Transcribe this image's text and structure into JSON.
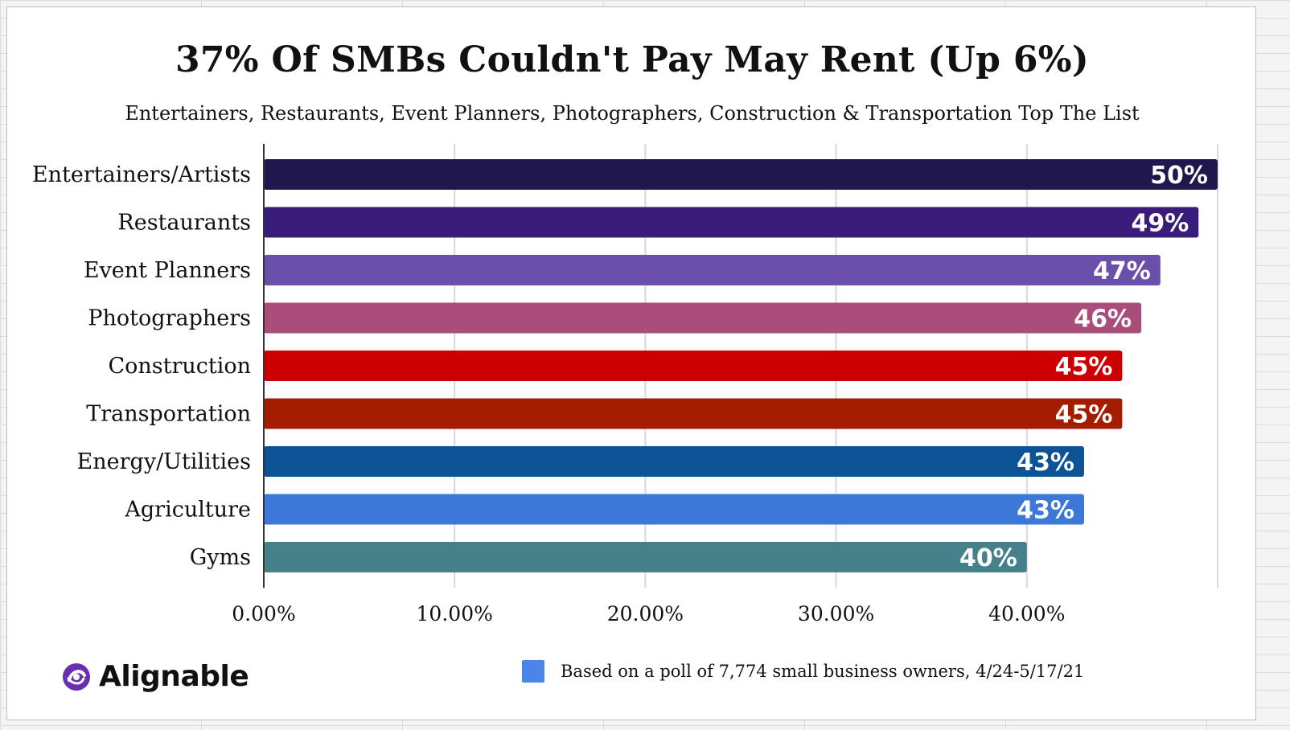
{
  "chart_data": {
    "type": "bar",
    "orientation": "horizontal",
    "title": "37% Of SMBs Couldn't Pay May Rent (Up 6%)",
    "subtitle": "Entertainers, Restaurants, Event Planners, Photographers, Construction & Transportation Top The List",
    "categories": [
      "Entertainers/Artists",
      "Restaurants",
      "Event Planners",
      "Photographers",
      "Construction",
      "Transportation",
      "Energy/Utilities",
      "Agriculture",
      "Gyms"
    ],
    "values": [
      50,
      49,
      47,
      46,
      45,
      45,
      43,
      43,
      40
    ],
    "data_labels": [
      "50%",
      "49%",
      "47%",
      "46%",
      "45%",
      "45%",
      "43%",
      "43%",
      "40%"
    ],
    "colors": [
      "#22174d",
      "#3a1c7a",
      "#6a4fab",
      "#a94e7a",
      "#cc0000",
      "#a51d00",
      "#0b5394",
      "#3c78d8",
      "#46818b"
    ],
    "xlim": [
      0,
      50
    ],
    "xticks": [
      0,
      10,
      20,
      30,
      40
    ],
    "xtick_labels": [
      "0.00%",
      "10.00%",
      "20.00%",
      "30.00%",
      "40.00%"
    ],
    "grid": true,
    "legend": {
      "position": "bottom",
      "label": "Based on a poll of 7,774 small business owners, 4/24-5/17/21",
      "color": "#4a86e8"
    }
  },
  "branding": {
    "logo_text": "Alignable",
    "logo_color": "#6a2fb0"
  }
}
